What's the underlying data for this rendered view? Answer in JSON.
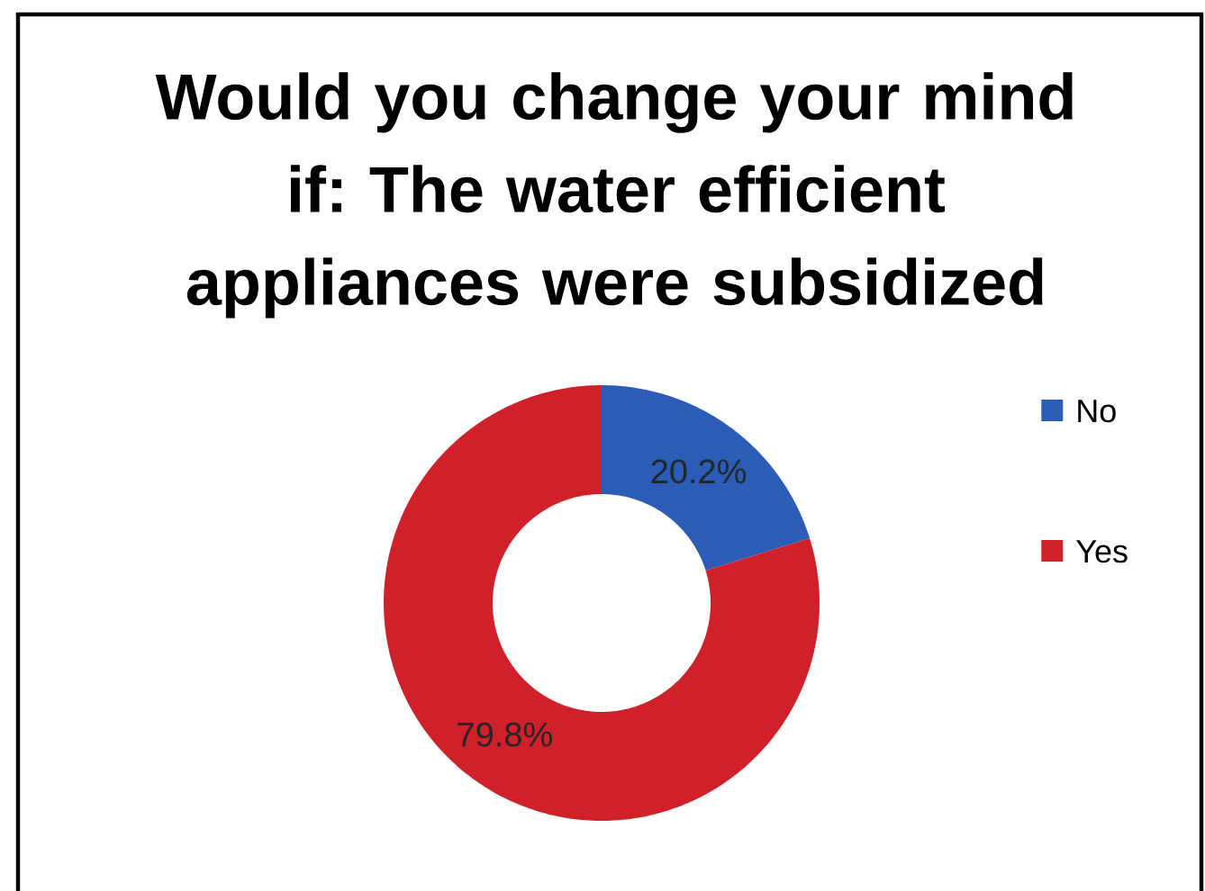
{
  "chart_data": {
    "type": "donut",
    "title": "Would you change your mind if: The water efficient appliances were subsidized",
    "categories": [
      "No",
      "Yes"
    ],
    "values": [
      20.2,
      79.8
    ],
    "colors": [
      "#2b5db8",
      "#d0202a"
    ],
    "value_labels": [
      "20.2%",
      "79.8%"
    ],
    "legend": "right"
  }
}
